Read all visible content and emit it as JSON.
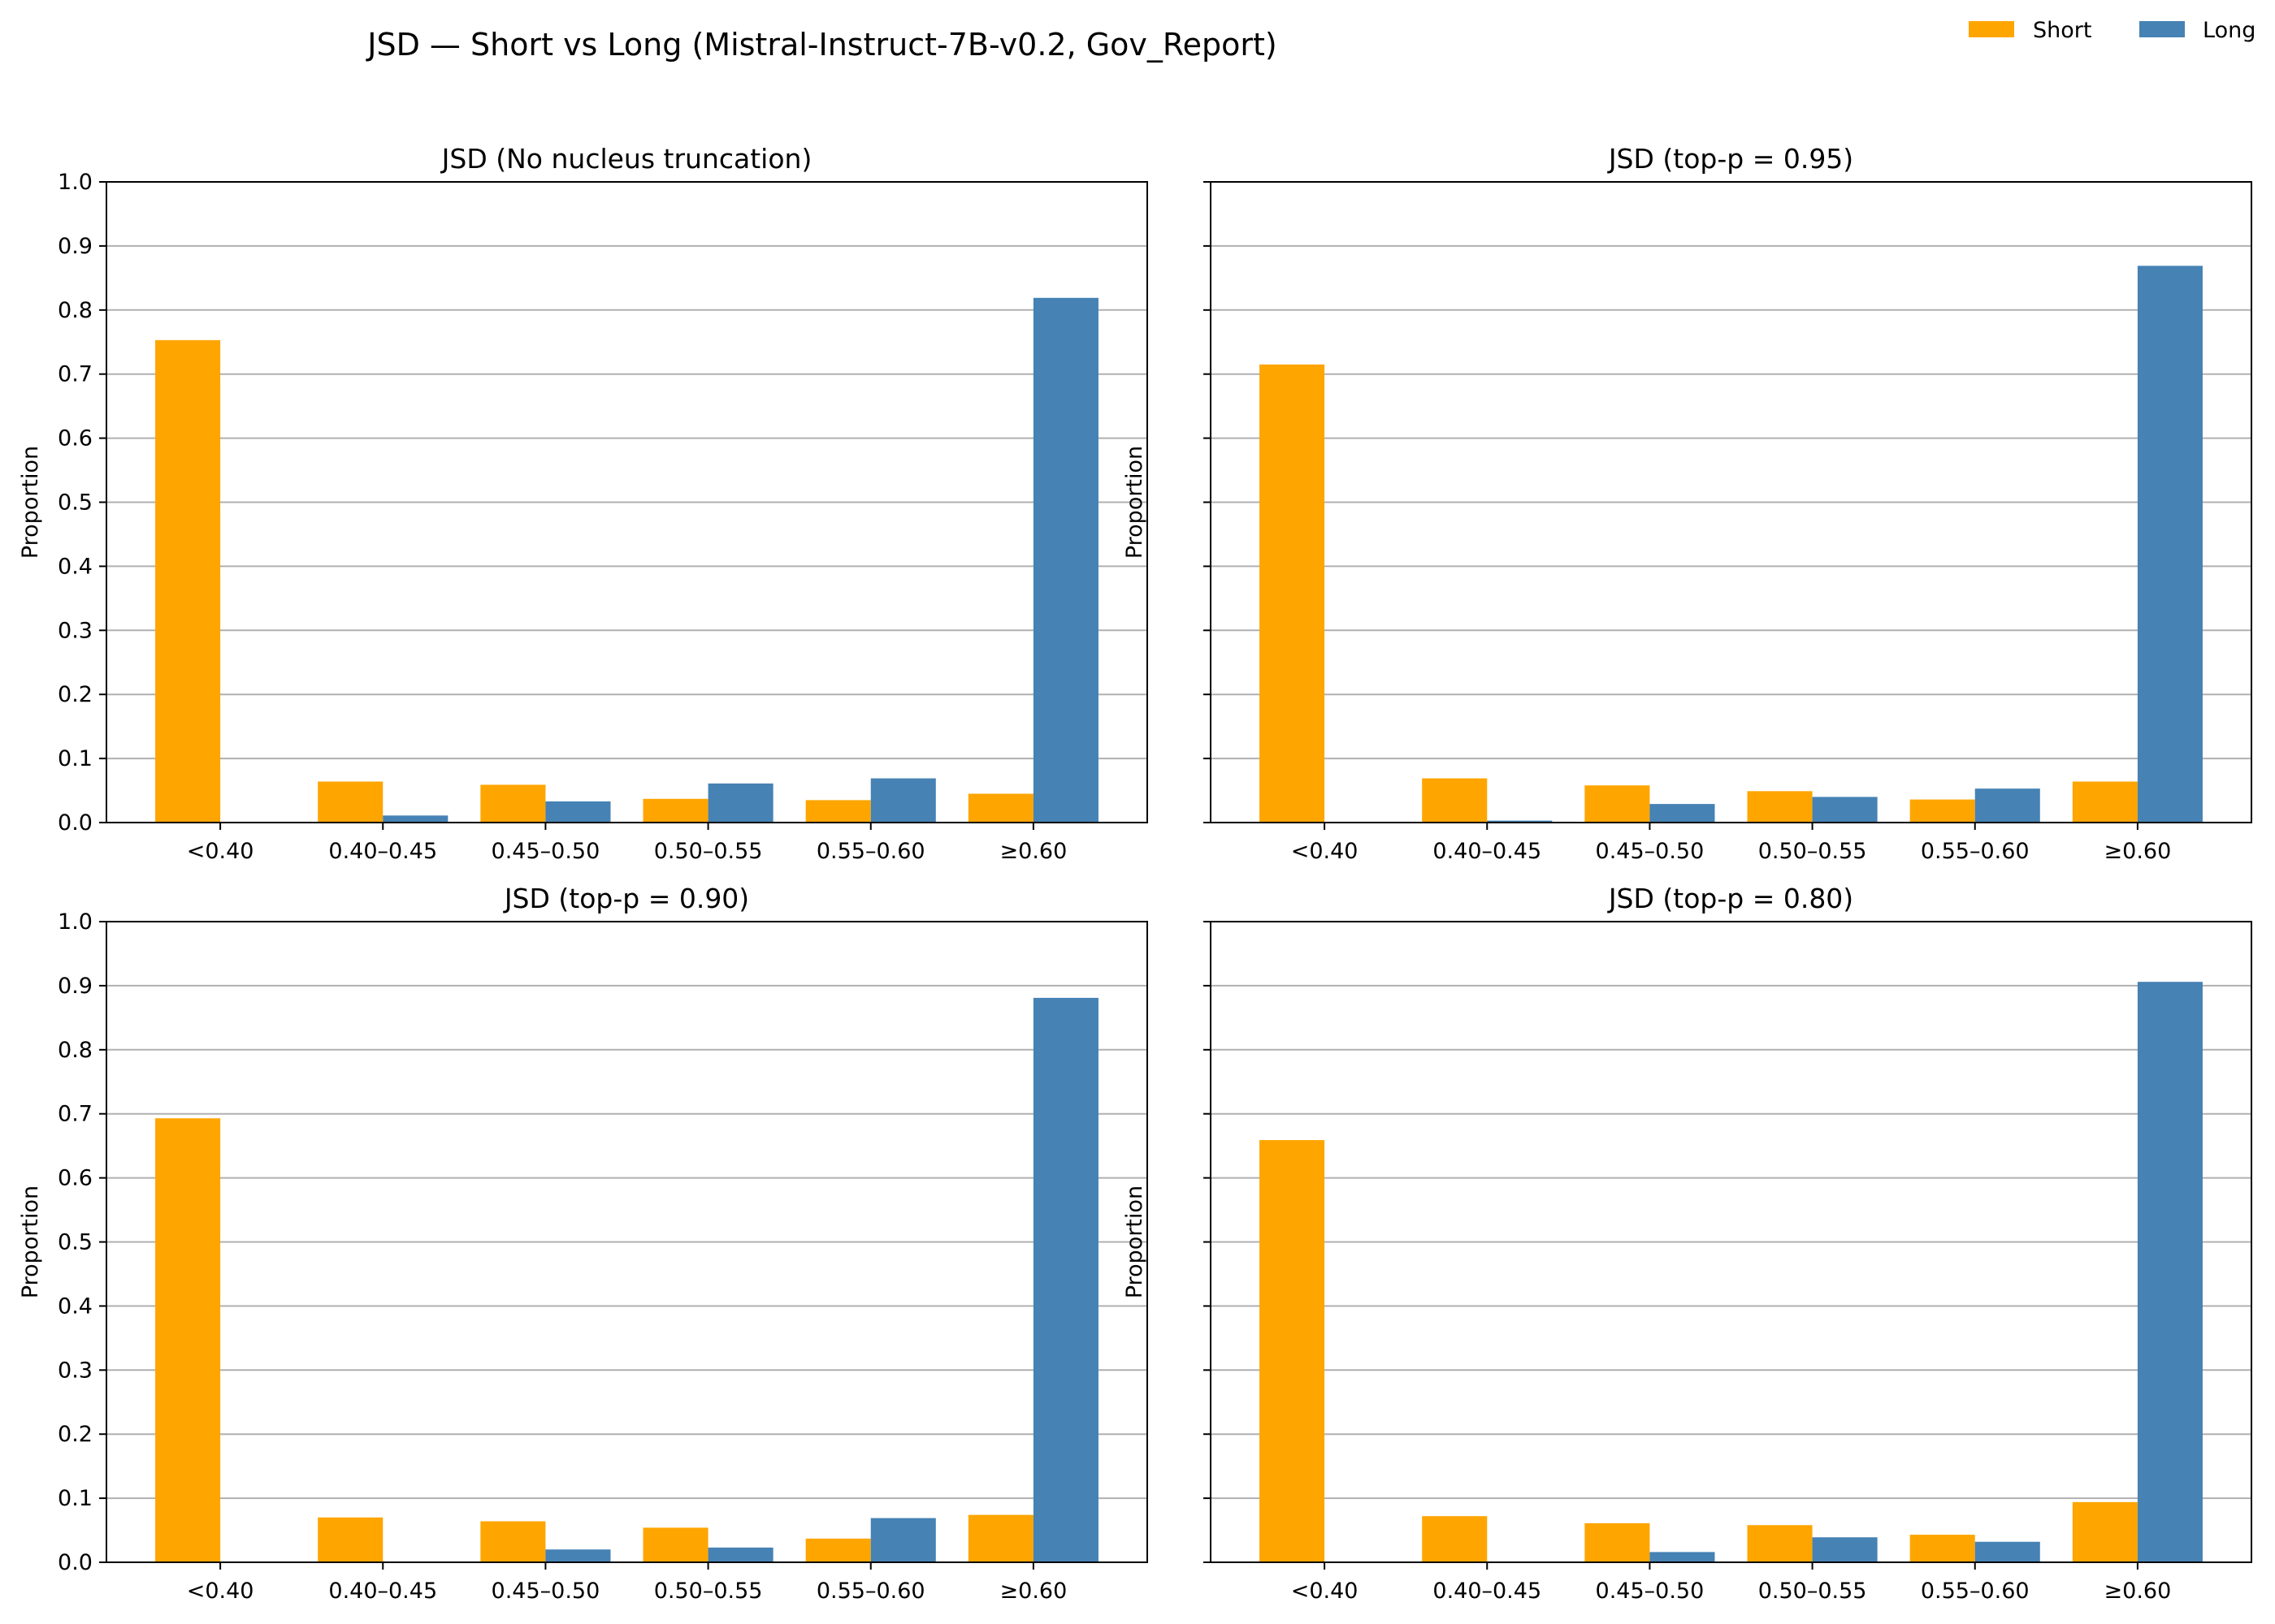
{
  "figure_title": "JSD — Short vs Long (Mistral-Instruct-7B-v0.2, Gov_Report)",
  "legend": {
    "placement": "top-right",
    "entries": [
      {
        "label": "Short",
        "color": "#FFA500"
      },
      {
        "label": "Long",
        "color": "#4682B4"
      }
    ]
  },
  "chart_data": [
    {
      "type": "bar",
      "title": "JSD (No nucleus truncation)",
      "xlabel": "",
      "ylabel": "Proportion",
      "ylim": [
        0,
        1.0
      ],
      "yticks": [
        "0.0",
        "0.1",
        "0.2",
        "0.3",
        "0.4",
        "0.5",
        "0.6",
        "0.7",
        "0.8",
        "0.9",
        "1.0"
      ],
      "grid": "y",
      "categories": [
        "<0.40",
        "0.40–0.45",
        "0.45–0.50",
        "0.50–0.55",
        "0.55–0.60",
        "≥0.60"
      ],
      "series": [
        {
          "name": "Short",
          "color": "#FFA500",
          "values": [
            0.753,
            0.064,
            0.059,
            0.037,
            0.035,
            0.045
          ]
        },
        {
          "name": "Long",
          "color": "#4682B4",
          "values": [
            0.0,
            0.011,
            0.033,
            0.061,
            0.069,
            0.819
          ]
        }
      ]
    },
    {
      "type": "bar",
      "title": "JSD (top-p = 0.95)",
      "xlabel": "",
      "ylabel": "Proportion",
      "ylim": [
        0,
        1.0
      ],
      "yticks": [],
      "grid": "y",
      "categories": [
        "<0.40",
        "0.40–0.45",
        "0.45–0.50",
        "0.50–0.55",
        "0.55–0.60",
        "≥0.60"
      ],
      "series": [
        {
          "name": "Short",
          "color": "#FFA500",
          "values": [
            0.715,
            0.069,
            0.058,
            0.049,
            0.036,
            0.064
          ]
        },
        {
          "name": "Long",
          "color": "#4682B4",
          "values": [
            0.0,
            0.003,
            0.029,
            0.04,
            0.053,
            0.869
          ]
        }
      ]
    },
    {
      "type": "bar",
      "title": "JSD (top-p = 0.90)",
      "xlabel": "",
      "ylabel": "Proportion",
      "ylim": [
        0,
        1.0
      ],
      "yticks": [
        "0.0",
        "0.1",
        "0.2",
        "0.3",
        "0.4",
        "0.5",
        "0.6",
        "0.7",
        "0.8",
        "0.9",
        "1.0"
      ],
      "grid": "y",
      "categories": [
        "<0.40",
        "0.40–0.45",
        "0.45–0.50",
        "0.50–0.55",
        "0.55–0.60",
        "≥0.60"
      ],
      "series": [
        {
          "name": "Short",
          "color": "#FFA500",
          "values": [
            0.693,
            0.07,
            0.064,
            0.054,
            0.037,
            0.074
          ]
        },
        {
          "name": "Long",
          "color": "#4682B4",
          "values": [
            0.0,
            0.0,
            0.02,
            0.023,
            0.069,
            0.881
          ]
        }
      ]
    },
    {
      "type": "bar",
      "title": "JSD (top-p = 0.80)",
      "xlabel": "",
      "ylabel": "Proportion",
      "ylim": [
        0,
        1.0
      ],
      "yticks": [],
      "grid": "y",
      "categories": [
        "<0.40",
        "0.40–0.45",
        "0.45–0.50",
        "0.50–0.55",
        "0.55–0.60",
        "≥0.60"
      ],
      "series": [
        {
          "name": "Short",
          "color": "#FFA500",
          "values": [
            0.659,
            0.072,
            0.061,
            0.058,
            0.043,
            0.094
          ]
        },
        {
          "name": "Long",
          "color": "#4682B4",
          "values": [
            0.0,
            0.0,
            0.016,
            0.039,
            0.032,
            0.906
          ]
        }
      ]
    }
  ]
}
